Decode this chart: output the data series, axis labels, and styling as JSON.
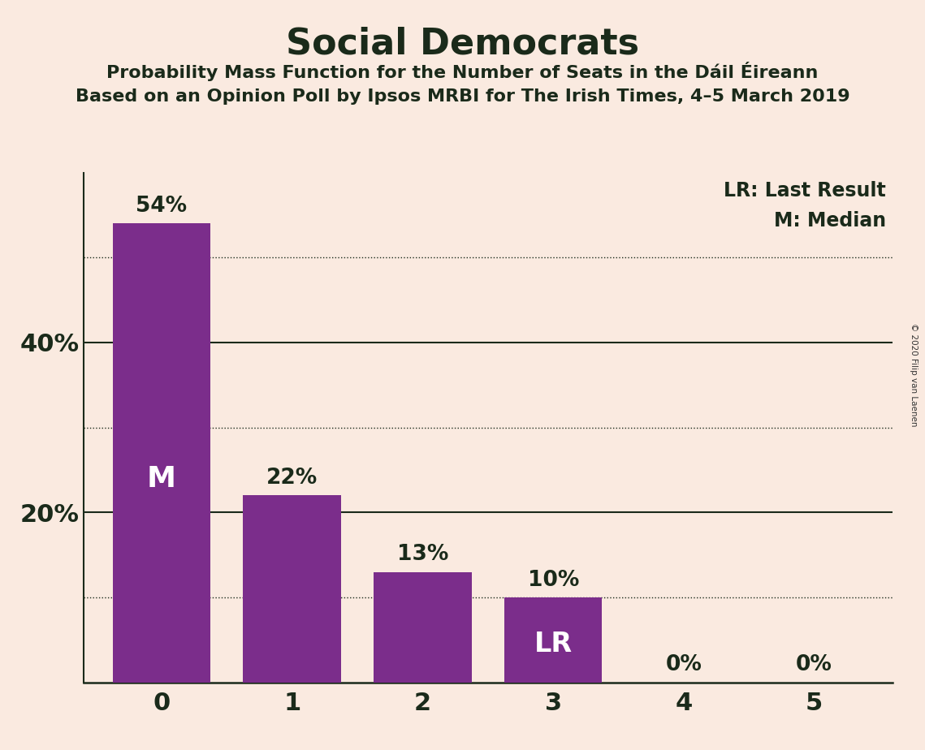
{
  "title": "Social Democrats",
  "subtitle1": "Probability Mass Function for the Number of Seats in the Dáil Éireann",
  "subtitle2": "Based on an Opinion Poll by Ipsos MRBI for The Irish Times, 4–5 March 2019",
  "copyright": "© 2020 Filip van Laenen",
  "categories": [
    0,
    1,
    2,
    3,
    4,
    5
  ],
  "values": [
    54,
    22,
    13,
    10,
    0,
    0
  ],
  "bar_color": "#7b2d8b",
  "background_color": "#faeae0",
  "text_dark": "#1a2a1a",
  "label_color_outside": "#1a2a1a",
  "label_color_inside": "#ffffff",
  "legend_lr": "LR: Last Result",
  "legend_m": "M: Median",
  "solid_gridlines": [
    20,
    40
  ],
  "dotted_gridlines": [
    10,
    30,
    50
  ],
  "ylim": [
    0,
    60
  ],
  "bar_width": 0.75,
  "median_bar": 0,
  "lr_bar": 3
}
